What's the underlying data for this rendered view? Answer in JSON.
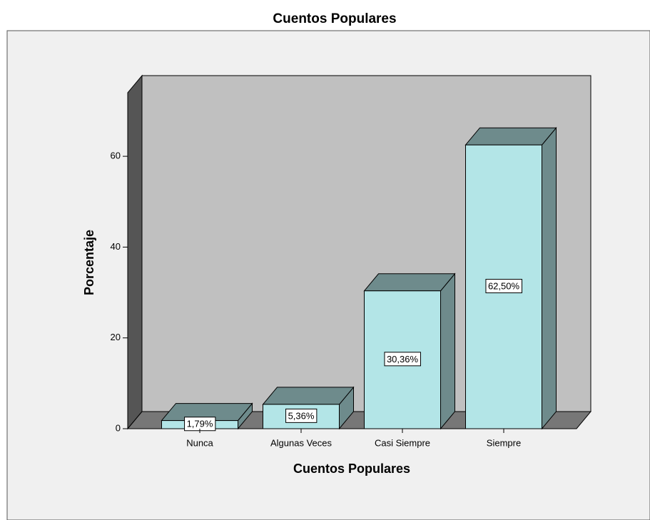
{
  "chart_data": {
    "type": "bar3d",
    "title": "Cuentos Populares",
    "x_label": "Cuentos Populares",
    "y_label": "Porcentaje",
    "categories": [
      "Nunca",
      "Algunas Veces",
      "Casi Siempre",
      "Siempre"
    ],
    "values": [
      1.79,
      5.36,
      30.36,
      62.5
    ],
    "value_labels": [
      "1,79%",
      "5,36%",
      "30,36%",
      "62,50%"
    ],
    "color": "#b3e5e7",
    "ylim": [
      0,
      74
    ],
    "yticks": [
      0,
      20,
      40,
      60
    ]
  }
}
